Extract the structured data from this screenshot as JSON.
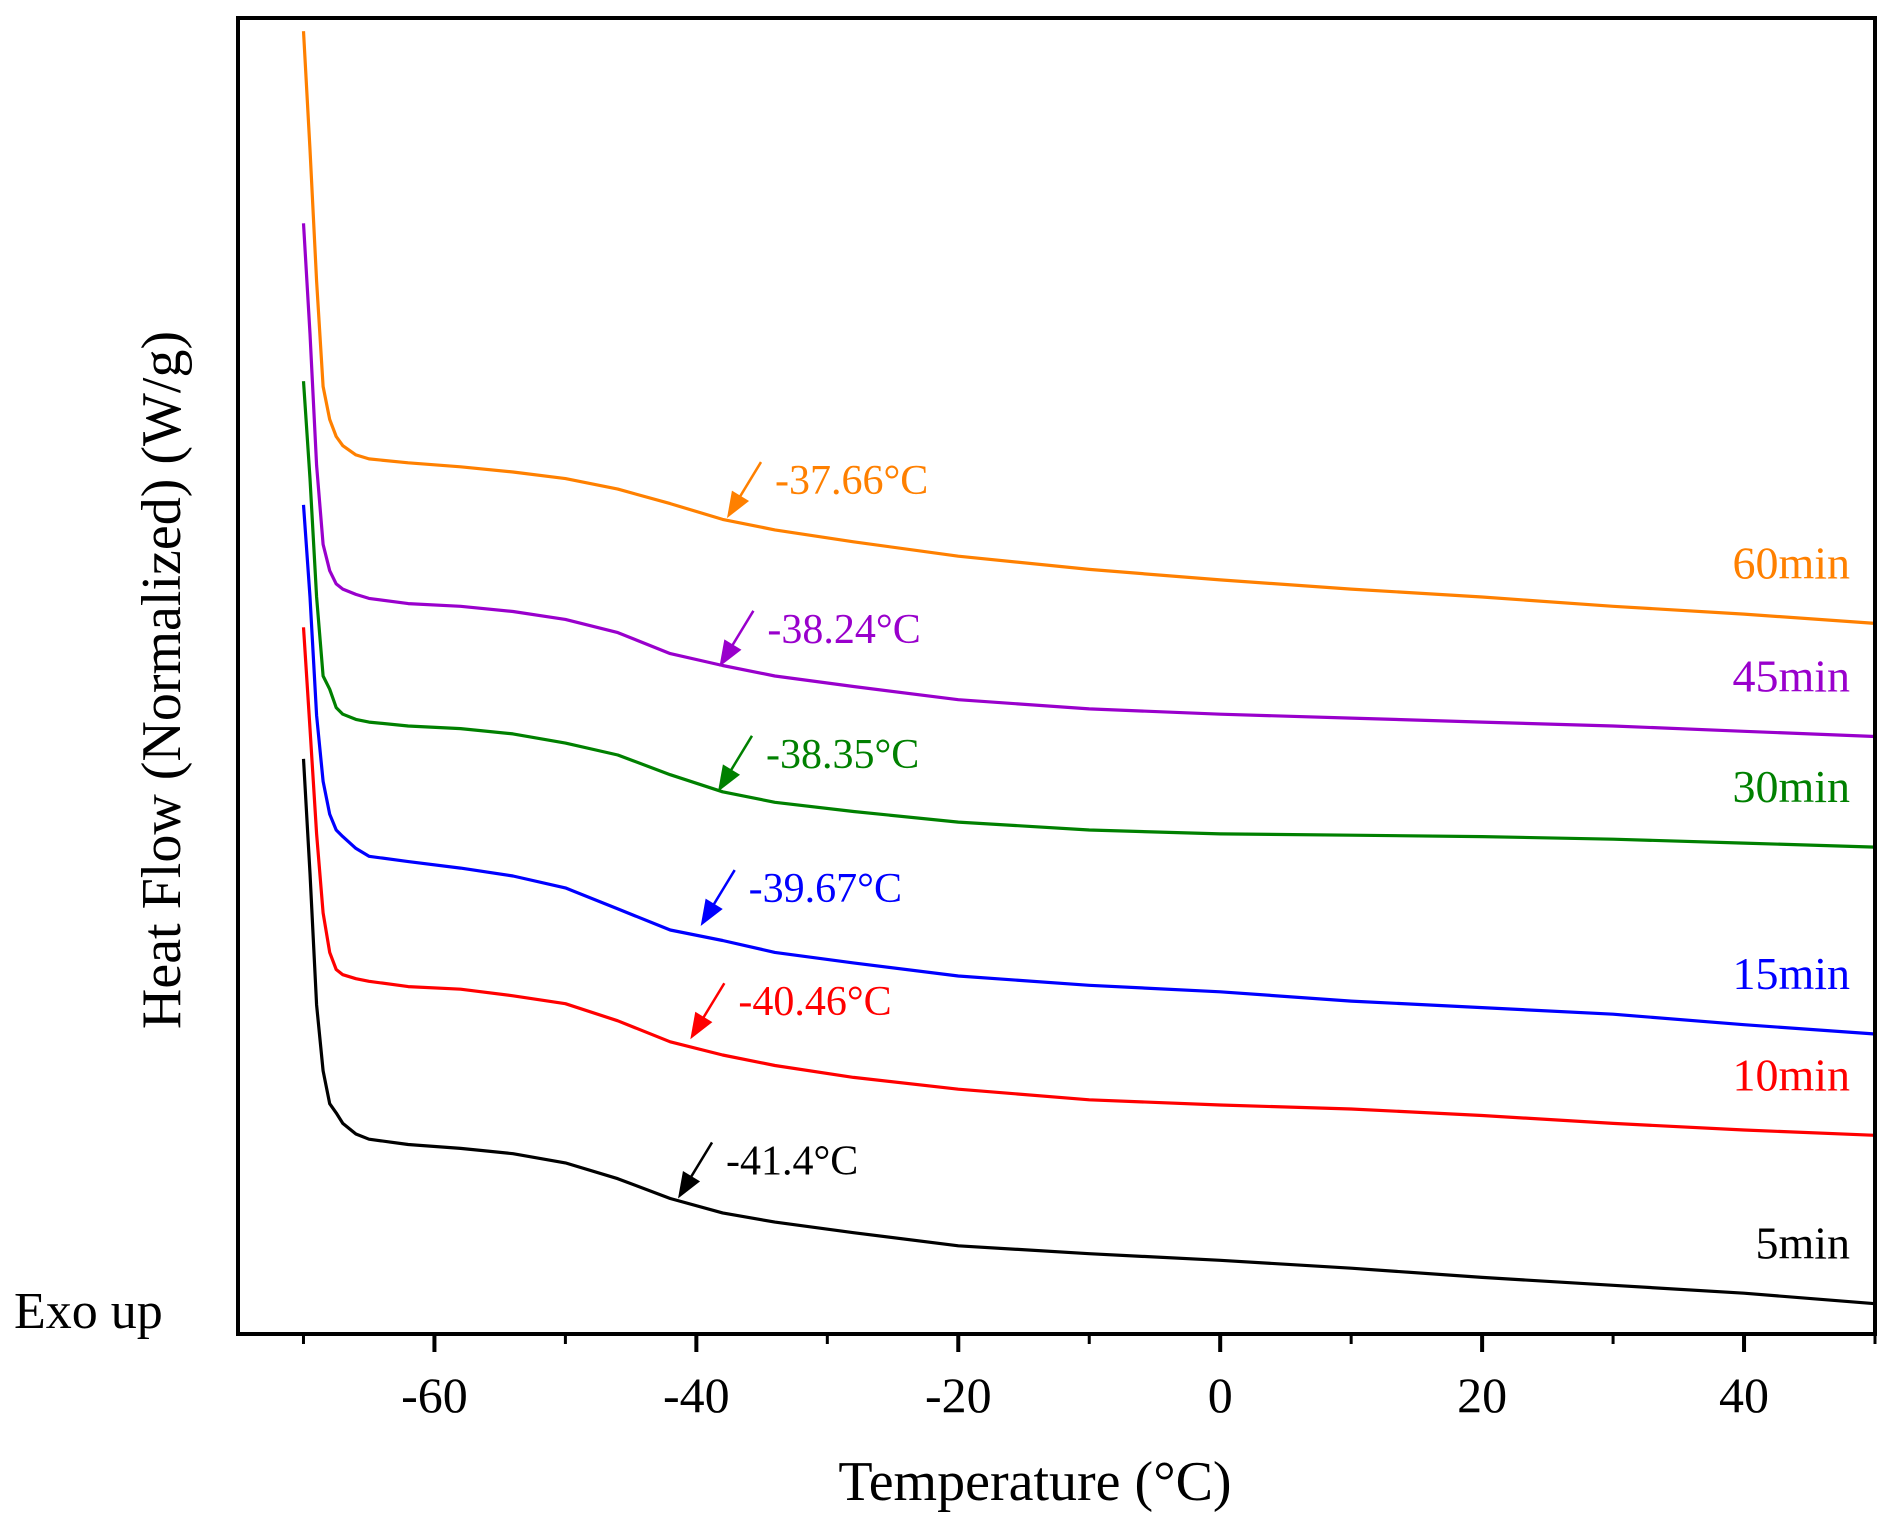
{
  "chart_data": {
    "type": "line",
    "title": "",
    "xlabel": "Temperature (°C)",
    "ylabel": "Heat Flow (Normalized) (W/g)",
    "xlim": [
      -75,
      50
    ],
    "xticks": [
      -60,
      -40,
      -20,
      0,
      20,
      40
    ],
    "tick_labels": [
      "-60",
      "-40",
      "-20",
      "0",
      "20",
      "40"
    ],
    "y_ticks_shown": false,
    "y_units": "arbitrary offset (curves vertically stacked)",
    "ylim": [
      0,
      1000
    ],
    "corner_note": "Exo up",
    "series": [
      {
        "name": "5min",
        "color": "#000000",
        "x": [
          -70,
          -69.5,
          -69,
          -68.5,
          -68,
          -67.5,
          -67,
          -66,
          -65,
          -62,
          -58,
          -54,
          -50,
          -46,
          -42,
          -38,
          -34,
          -28,
          -20,
          -10,
          0,
          10,
          20,
          30,
          40,
          50
        ],
        "y": [
          437,
          350,
          250,
          200,
          175,
          168,
          160,
          152,
          148,
          144,
          141,
          137,
          130,
          118,
          103,
          92,
          85,
          77,
          67,
          61,
          56,
          50,
          43,
          37,
          31,
          23
        ],
        "tg": -41.4,
        "tg_y": 103,
        "tg_label": "-41.4°C"
      },
      {
        "name": "10min",
        "color": "#ff0000",
        "x": [
          -70,
          -69.5,
          -69,
          -68.5,
          -68,
          -67.5,
          -67,
          -66,
          -65,
          -62,
          -58,
          -54,
          -50,
          -46,
          -42,
          -38,
          -34,
          -28,
          -20,
          -10,
          0,
          10,
          20,
          30,
          40,
          50
        ],
        "y": [
          537,
          460,
          380,
          320,
          290,
          277,
          273,
          270,
          268,
          264,
          262,
          257,
          251,
          238,
          222,
          212,
          204,
          195,
          186,
          178,
          174,
          171,
          166,
          160,
          155,
          151
        ],
        "tg": -40.46,
        "tg_y": 224,
        "tg_label": "-40.46°C"
      },
      {
        "name": "15min",
        "color": "#0000ff",
        "x": [
          -70,
          -69.5,
          -69,
          -68.5,
          -68,
          -67.5,
          -67,
          -66,
          -65,
          -62,
          -58,
          -54,
          -50,
          -46,
          -42,
          -38,
          -34,
          -28,
          -20,
          -10,
          0,
          10,
          20,
          30,
          40,
          50
        ],
        "y": [
          630,
          560,
          470,
          420,
          395,
          383,
          378,
          369,
          363,
          359,
          354,
          348,
          339,
          323,
          307,
          299,
          290,
          282,
          272,
          265,
          260,
          253,
          248,
          243,
          235,
          228
        ],
        "tg": -39.67,
        "tg_y": 310,
        "tg_label": "-39.67°C"
      },
      {
        "name": "30min",
        "color": "#008000",
        "x": [
          -70,
          -69.5,
          -69,
          -68.5,
          -68,
          -67.5,
          -67,
          -66,
          -65,
          -62,
          -58,
          -54,
          -50,
          -46,
          -42,
          -38,
          -34,
          -28,
          -20,
          -10,
          0,
          10,
          20,
          30,
          40,
          50
        ],
        "y": [
          724,
          650,
          560,
          500,
          490,
          476,
          471,
          467,
          465,
          462,
          460,
          456,
          449,
          440,
          425,
          412,
          404,
          397,
          389,
          383,
          380,
          379,
          378,
          376,
          373,
          370
        ],
        "tg": -38.35,
        "tg_y": 412,
        "tg_label": "-38.35°C"
      },
      {
        "name": "45min",
        "color": "#9900cc",
        "x": [
          -70,
          -69.5,
          -69,
          -68.5,
          -68,
          -67.5,
          -67,
          -66,
          -65,
          -62,
          -58,
          -54,
          -50,
          -46,
          -42,
          -38,
          -34,
          -28,
          -20,
          -10,
          0,
          10,
          20,
          30,
          40,
          50
        ],
        "y": [
          844,
          760,
          660,
          600,
          580,
          570,
          566,
          562,
          559,
          555,
          553,
          549,
          543,
          533,
          517,
          508,
          500,
          492,
          482,
          475,
          471,
          468,
          465,
          462,
          458,
          454
        ],
        "tg": -38.24,
        "tg_y": 507,
        "tg_label": "-38.24°C"
      },
      {
        "name": "60min",
        "color": "#ff8000",
        "x": [
          -70,
          -69.5,
          -69,
          -68.5,
          -68,
          -67.5,
          -67,
          -66,
          -65,
          -62,
          -58,
          -54,
          -50,
          -46,
          -42,
          -38,
          -34,
          -28,
          -20,
          -10,
          0,
          10,
          20,
          30,
          40,
          50
        ],
        "y": [
          990,
          900,
          800,
          720,
          695,
          682,
          675,
          668,
          665,
          662,
          659,
          655,
          650,
          642,
          631,
          619,
          611,
          602,
          591,
          581,
          573,
          566,
          560,
          553,
          547,
          540
        ],
        "tg": -37.66,
        "tg_y": 620,
        "tg_label": "-37.66°C"
      }
    ]
  }
}
